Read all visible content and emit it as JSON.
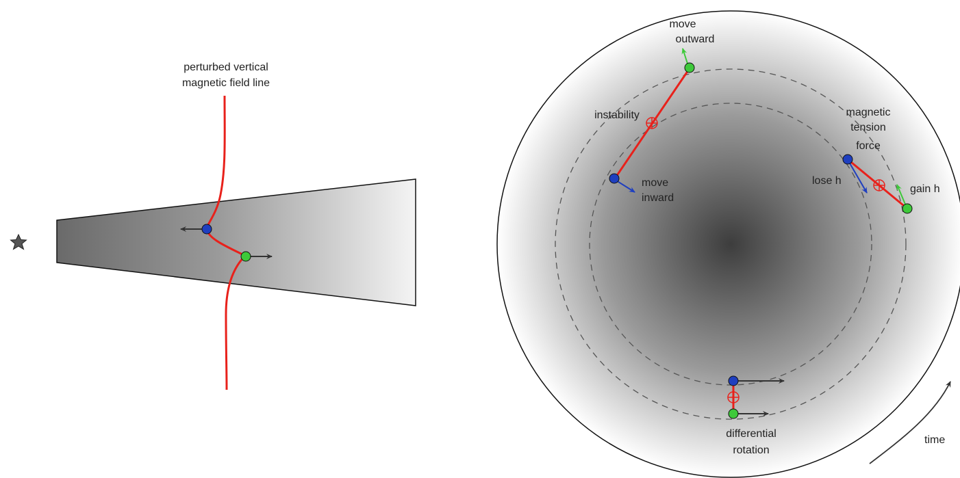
{
  "left_panel": {
    "field_line_label": [
      "perturbed vertical",
      "magnetic field line"
    ],
    "star_icon": "star-icon"
  },
  "right_panel": {
    "label_move_outward": [
      "move",
      "outward"
    ],
    "label_instability": "instability",
    "label_move_inward": [
      "move",
      "inward"
    ],
    "label_tension": [
      "magnetic",
      "tension",
      "force"
    ],
    "label_lose_h": "lose h",
    "label_gain_h": "gain h",
    "label_differential": [
      "differential",
      "rotation"
    ],
    "label_time": "time"
  },
  "colors": {
    "field_line": "#e8211b",
    "inner_particle": "#1f3fbf",
    "outer_particle": "#3ec93a",
    "arrow_dark": "#333333",
    "arrow_blue": "#1f3fbf",
    "arrow_green": "#3ec93a",
    "spring_symbol": "#e8211b"
  }
}
